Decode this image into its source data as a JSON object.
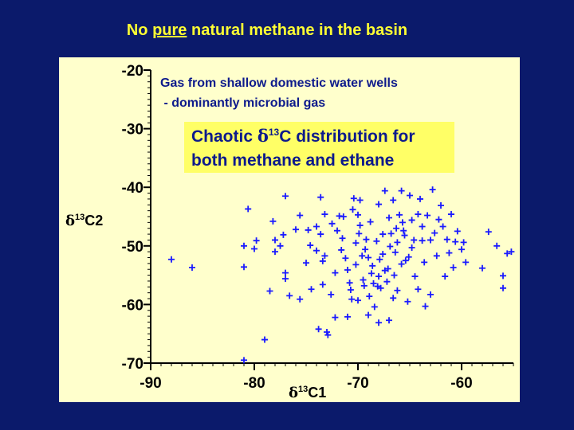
{
  "slide": {
    "title_pre": "No ",
    "title_emph": "pure",
    "title_post": " natural methane in the basin"
  },
  "annotations": {
    "note_line1": "Gas from shallow domestic water wells",
    "note_line2": " - dominantly microbial gas",
    "callout_line1_pre": "Chaotic ",
    "callout_delta": "δ",
    "callout_sup": "13",
    "callout_line1_post": "C distribution for",
    "callout_line2": "both methane and ethane"
  },
  "colors": {
    "background": "#0b1a6b",
    "title": "#ffff33",
    "panel": "#ffffcc",
    "callout_box": "#ffff66",
    "marker": "#1a1aff",
    "note_text": "#0d1a8c"
  },
  "chart_data": {
    "type": "scatter",
    "marker": "plus",
    "xlabel_delta": "δ",
    "xlabel_sup": "13",
    "xlabel_post": "C1",
    "ylabel_delta": "δ",
    "ylabel_sup": "13",
    "ylabel_post": "C2",
    "xlim": [
      -90,
      -55
    ],
    "ylim": [
      -70,
      -20
    ],
    "xticks": [
      -90,
      -80,
      -70,
      -60
    ],
    "xtick_labels": [
      "-90",
      "-80",
      "-70",
      "-60"
    ],
    "yticks": [
      -20,
      -30,
      -40,
      -50,
      -60,
      -70
    ],
    "ytick_labels": [
      "-20",
      "-30",
      "-40",
      "-50",
      "-60",
      "-70"
    ],
    "grid": false,
    "points": [
      [
        -88.0,
        -52.3
      ],
      [
        -86.0,
        -53.7
      ],
      [
        -81.0,
        -69.5
      ],
      [
        -80.6,
        -43.7
      ],
      [
        -81.0,
        -50.0
      ],
      [
        -81.0,
        -53.6
      ],
      [
        -80.0,
        -50.5
      ],
      [
        -79.8,
        -49.1
      ],
      [
        -79.0,
        -66.0
      ],
      [
        -78.5,
        -57.7
      ],
      [
        -78.2,
        -45.8
      ],
      [
        -78.0,
        -49.0
      ],
      [
        -78.0,
        -51.0
      ],
      [
        -77.5,
        -50.0
      ],
      [
        -77.0,
        -41.5
      ],
      [
        -77.2,
        -48.1
      ],
      [
        -77.0,
        -54.6
      ],
      [
        -77.0,
        -55.6
      ],
      [
        -76.6,
        -58.5
      ],
      [
        -76.0,
        -47.2
      ],
      [
        -75.6,
        -44.8
      ],
      [
        -75.6,
        -59.1
      ],
      [
        -75.0,
        -52.9
      ],
      [
        -74.8,
        -47.3
      ],
      [
        -74.6,
        -49.9
      ],
      [
        -74.5,
        -57.4
      ],
      [
        -74.0,
        -46.7
      ],
      [
        -74.0,
        -50.8
      ],
      [
        -73.8,
        -64.2
      ],
      [
        -73.6,
        -41.7
      ],
      [
        -73.6,
        -48.0
      ],
      [
        -73.4,
        -52.6
      ],
      [
        -73.4,
        -56.6
      ],
      [
        -73.2,
        -44.6
      ],
      [
        -73.2,
        -51.7
      ],
      [
        -73.0,
        -64.7
      ],
      [
        -72.9,
        -65.2
      ],
      [
        -72.6,
        -58.3
      ],
      [
        -72.2,
        -62.2
      ],
      [
        -72.2,
        -54.6
      ],
      [
        -72.0,
        -47.4
      ],
      [
        -71.8,
        -44.9
      ],
      [
        -71.6,
        -50.7
      ],
      [
        -71.4,
        -45.0
      ],
      [
        -71.2,
        -52.1
      ],
      [
        -71.0,
        -62.1
      ],
      [
        -71.0,
        -54.1
      ],
      [
        -70.8,
        -56.3
      ],
      [
        -70.6,
        -59.1
      ],
      [
        -70.5,
        -43.8
      ],
      [
        -70.4,
        -41.9
      ],
      [
        -70.2,
        -49.5
      ],
      [
        -70.2,
        -53.2
      ],
      [
        -70.0,
        -59.3
      ],
      [
        -70.0,
        -44.7
      ],
      [
        -69.8,
        -42.2
      ],
      [
        -69.8,
        -46.5
      ],
      [
        -69.6,
        -51.7
      ],
      [
        -69.4,
        -56.8
      ],
      [
        -69.2,
        -48.9
      ],
      [
        -69.0,
        -61.8
      ],
      [
        -69.0,
        -52.0
      ],
      [
        -68.9,
        -58.6
      ],
      [
        -68.8,
        -45.9
      ],
      [
        -68.6,
        -53.4
      ],
      [
        -68.5,
        -56.4
      ],
      [
        -68.4,
        -60.4
      ],
      [
        -68.2,
        -49.2
      ],
      [
        -68.0,
        -42.9
      ],
      [
        -68.0,
        -55.2
      ],
      [
        -68.0,
        -63.1
      ],
      [
        -67.8,
        -57.2
      ],
      [
        -67.6,
        -51.4
      ],
      [
        -67.6,
        -48.0
      ],
      [
        -67.4,
        -40.6
      ],
      [
        -67.4,
        -54.2
      ],
      [
        -67.2,
        -56.1
      ],
      [
        -67.0,
        -62.7
      ],
      [
        -67.0,
        -45.2
      ],
      [
        -66.9,
        -50.1
      ],
      [
        -66.8,
        -47.9
      ],
      [
        -66.6,
        -58.9
      ],
      [
        -66.6,
        -42.2
      ],
      [
        -66.5,
        -55.0
      ],
      [
        -66.4,
        -51.1
      ],
      [
        -66.2,
        -49.4
      ],
      [
        -66.2,
        -57.6
      ],
      [
        -66.0,
        -44.7
      ],
      [
        -65.8,
        -40.6
      ],
      [
        -65.8,
        -53.1
      ],
      [
        -65.6,
        -47.4
      ],
      [
        -65.5,
        -48.2
      ],
      [
        -65.4,
        -52.5
      ],
      [
        -65.2,
        -59.5
      ],
      [
        -65.0,
        -41.4
      ],
      [
        -64.8,
        -45.6
      ],
      [
        -64.8,
        -50.3
      ],
      [
        -64.6,
        -49.0
      ],
      [
        -64.5,
        -55.2
      ],
      [
        -64.2,
        -44.6
      ],
      [
        -64.2,
        -57.4
      ],
      [
        -64.0,
        -42.0
      ],
      [
        -63.8,
        -46.7
      ],
      [
        -63.8,
        -49.1
      ],
      [
        -63.6,
        -52.8
      ],
      [
        -63.5,
        -60.3
      ],
      [
        -63.3,
        -44.8
      ],
      [
        -63.0,
        -49.0
      ],
      [
        -63.0,
        -58.3
      ],
      [
        -62.8,
        -40.4
      ],
      [
        -62.6,
        -47.8
      ],
      [
        -62.4,
        -51.7
      ],
      [
        -62.2,
        -45.5
      ],
      [
        -62.0,
        -43.1
      ],
      [
        -61.8,
        -46.7
      ],
      [
        -61.6,
        -55.2
      ],
      [
        -61.4,
        -48.9
      ],
      [
        -61.2,
        -51.2
      ],
      [
        -61.0,
        -44.6
      ],
      [
        -60.8,
        -53.7
      ],
      [
        -60.6,
        -49.3
      ],
      [
        -60.4,
        -47.5
      ],
      [
        -60.0,
        -50.6
      ],
      [
        -59.8,
        -49.4
      ],
      [
        -59.6,
        -52.8
      ],
      [
        -58.0,
        -53.8
      ],
      [
        -57.4,
        -47.6
      ],
      [
        -56.6,
        -50.0
      ],
      [
        -56.0,
        -55.1
      ],
      [
        -56.0,
        -57.2
      ],
      [
        -55.6,
        -51.3
      ],
      [
        -55.2,
        -51.0
      ],
      [
        -69.9,
        -47.9
      ],
      [
        -69.3,
        -50.6
      ],
      [
        -68.7,
        -54.7
      ],
      [
        -67.9,
        -52.3
      ],
      [
        -67.1,
        -53.9
      ],
      [
        -66.3,
        -47.0
      ],
      [
        -65.7,
        -46.0
      ],
      [
        -65.1,
        -51.9
      ],
      [
        -70.7,
        -57.5
      ],
      [
        -71.5,
        -48.7
      ],
      [
        -72.5,
        -46.2
      ],
      [
        -69.5,
        -55.8
      ],
      [
        -68.1,
        -56.9
      ]
    ]
  }
}
